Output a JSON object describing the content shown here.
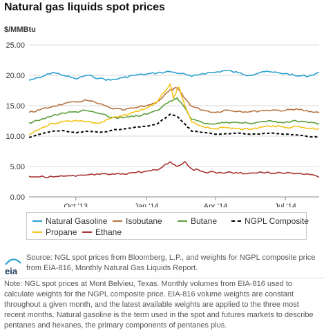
{
  "title": "Natural gas liquids spot prices",
  "unit_label": "$/MMBtu",
  "chart_data": {
    "type": "line",
    "title": "Natural gas liquids spot prices",
    "ylabel": "$/MMBtu",
    "xlabel": "",
    "ylim": [
      0,
      25
    ],
    "yticks": [
      "0.00",
      "5.00",
      "10.00",
      "15.00",
      "20.00",
      "25.00"
    ],
    "ytick_values": [
      0,
      5,
      10,
      15,
      20,
      25
    ],
    "xlim": [
      "2013-08-01",
      "2014-08-14"
    ],
    "xticks": [
      "Oct '13",
      "Jan '14",
      "Apr '14",
      "Jul '14"
    ],
    "xtick_dates": [
      "2013-10-01",
      "2014-01-01",
      "2014-04-01",
      "2014-07-01"
    ],
    "grid": "horizontal",
    "legend_position": "bottom",
    "series": [
      {
        "name": "Natural Gasoline",
        "color": "#2ba0d0",
        "dash": "solid",
        "x": [
          "2013-08-01",
          "2013-08-15",
          "2013-09-01",
          "2013-09-15",
          "2013-10-01",
          "2013-10-15",
          "2013-11-01",
          "2013-11-15",
          "2013-12-01",
          "2013-12-15",
          "2014-01-01",
          "2014-01-15",
          "2014-02-01",
          "2014-02-15",
          "2014-03-01",
          "2014-03-15",
          "2014-04-01",
          "2014-04-15",
          "2014-05-01",
          "2014-05-15",
          "2014-06-01",
          "2014-06-15",
          "2014-07-01",
          "2014-07-15",
          "2014-08-01",
          "2014-08-14"
        ],
        "values": [
          19.2,
          19.6,
          20.5,
          20.0,
          19.4,
          20.0,
          19.5,
          19.2,
          19.6,
          20.0,
          20.2,
          20.4,
          20.6,
          20.3,
          19.8,
          20.3,
          20.5,
          20.8,
          20.4,
          20.0,
          20.6,
          20.5,
          20.3,
          19.9,
          19.9,
          20.5
        ]
      },
      {
        "name": "Isobutane",
        "color": "#b8733f",
        "dash": "solid",
        "x": [
          "2013-08-01",
          "2013-08-15",
          "2013-09-01",
          "2013-09-15",
          "2013-10-01",
          "2013-10-15",
          "2013-11-01",
          "2013-11-15",
          "2013-12-01",
          "2013-12-15",
          "2014-01-01",
          "2014-01-15",
          "2014-02-01",
          "2014-02-10",
          "2014-02-20",
          "2014-03-01",
          "2014-03-15",
          "2014-04-01",
          "2014-04-15",
          "2014-05-01",
          "2014-05-15",
          "2014-06-01",
          "2014-06-15",
          "2014-07-01",
          "2014-07-15",
          "2014-08-01",
          "2014-08-14"
        ],
        "values": [
          13.9,
          14.3,
          14.9,
          15.3,
          15.6,
          15.9,
          15.3,
          14.6,
          14.3,
          14.6,
          15.0,
          15.6,
          17.6,
          17.9,
          16.2,
          14.9,
          14.3,
          13.9,
          14.3,
          14.1,
          14.0,
          14.2,
          14.3,
          14.2,
          14.5,
          14.0,
          13.8
        ]
      },
      {
        "name": "Butane",
        "color": "#5a9e3a",
        "dash": "solid",
        "x": [
          "2013-08-01",
          "2013-08-15",
          "2013-09-01",
          "2013-09-15",
          "2013-10-01",
          "2013-10-15",
          "2013-11-01",
          "2013-11-15",
          "2013-12-01",
          "2013-12-15",
          "2014-01-01",
          "2014-01-15",
          "2014-02-01",
          "2014-02-10",
          "2014-02-20",
          "2014-03-01",
          "2014-03-15",
          "2014-04-01",
          "2014-04-15",
          "2014-05-01",
          "2014-05-15",
          "2014-06-01",
          "2014-06-15",
          "2014-07-01",
          "2014-07-15",
          "2014-08-01",
          "2014-08-14"
        ],
        "values": [
          12.2,
          12.6,
          13.4,
          13.8,
          14.0,
          14.2,
          13.7,
          13.1,
          13.0,
          13.2,
          13.6,
          14.2,
          15.8,
          16.3,
          14.6,
          12.8,
          12.2,
          12.0,
          12.3,
          12.2,
          12.1,
          12.4,
          12.4,
          12.3,
          12.5,
          12.2,
          12.1
        ]
      },
      {
        "name": "NGPL Composite",
        "color": "#000000",
        "dash": "dashed",
        "x": [
          "2013-08-01",
          "2013-08-15",
          "2013-09-01",
          "2013-09-15",
          "2013-10-01",
          "2013-10-15",
          "2013-11-01",
          "2013-11-15",
          "2013-12-01",
          "2013-12-15",
          "2014-01-01",
          "2014-01-15",
          "2014-02-01",
          "2014-02-10",
          "2014-02-20",
          "2014-03-01",
          "2014-03-15",
          "2014-04-01",
          "2014-04-15",
          "2014-05-01",
          "2014-05-15",
          "2014-06-01",
          "2014-06-15",
          "2014-07-01",
          "2014-07-15",
          "2014-08-01",
          "2014-08-14"
        ],
        "values": [
          9.8,
          10.3,
          10.8,
          10.9,
          10.5,
          10.8,
          10.6,
          10.9,
          11.2,
          11.4,
          11.6,
          12.0,
          13.6,
          13.2,
          12.0,
          10.8,
          10.6,
          10.3,
          10.4,
          10.5,
          10.3,
          10.4,
          10.5,
          10.3,
          10.2,
          9.9,
          9.8
        ]
      },
      {
        "name": "Propane",
        "color": "#f5c31c",
        "dash": "solid",
        "x": [
          "2013-08-01",
          "2013-08-15",
          "2013-09-01",
          "2013-09-15",
          "2013-10-01",
          "2013-10-15",
          "2013-11-01",
          "2013-11-15",
          "2013-12-01",
          "2013-12-15",
          "2014-01-01",
          "2014-01-15",
          "2014-02-01",
          "2014-02-05",
          "2014-02-12",
          "2014-02-20",
          "2014-03-01",
          "2014-03-15",
          "2014-04-01",
          "2014-04-15",
          "2014-05-01",
          "2014-05-15",
          "2014-06-01",
          "2014-06-15",
          "2014-07-01",
          "2014-07-15",
          "2014-08-01",
          "2014-08-14"
        ],
        "values": [
          10.2,
          11.2,
          12.1,
          12.4,
          12.6,
          12.4,
          12.1,
          12.9,
          13.3,
          13.9,
          14.6,
          15.6,
          18.6,
          16.2,
          18.1,
          15.0,
          12.3,
          11.6,
          11.2,
          11.4,
          11.3,
          11.1,
          11.5,
          11.7,
          11.4,
          11.6,
          11.3,
          11.2
        ]
      },
      {
        "name": "Ethane",
        "color": "#a83232",
        "dash": "solid",
        "x": [
          "2013-08-01",
          "2013-08-15",
          "2013-09-01",
          "2013-09-15",
          "2013-10-01",
          "2013-10-15",
          "2013-11-01",
          "2013-11-15",
          "2013-12-01",
          "2013-12-15",
          "2014-01-01",
          "2014-01-15",
          "2014-02-01",
          "2014-02-10",
          "2014-02-20",
          "2014-03-01",
          "2014-03-15",
          "2014-04-01",
          "2014-04-15",
          "2014-05-01",
          "2014-05-15",
          "2014-06-01",
          "2014-06-15",
          "2014-07-01",
          "2014-07-15",
          "2014-08-01",
          "2014-08-14"
        ],
        "values": [
          3.4,
          3.3,
          3.3,
          3.4,
          3.4,
          3.6,
          3.7,
          3.7,
          3.8,
          4.0,
          4.2,
          4.4,
          5.8,
          5.0,
          5.8,
          4.6,
          4.2,
          4.0,
          4.0,
          3.9,
          3.9,
          4.0,
          3.9,
          3.9,
          3.9,
          3.7,
          3.2
        ]
      }
    ]
  },
  "legend": {
    "items": [
      {
        "label": "Natural Gasoline",
        "color": "#2ba0d0",
        "dash": "solid"
      },
      {
        "label": "Isobutane",
        "color": "#b8733f",
        "dash": "solid"
      },
      {
        "label": "Butane",
        "color": "#5a9e3a",
        "dash": "solid"
      },
      {
        "label": "NGPL Composite",
        "color": "#000000",
        "dash": "dashed"
      },
      {
        "label": "Propane",
        "color": "#f5c31c",
        "dash": "solid"
      },
      {
        "label": "Ethane",
        "color": "#a83232",
        "dash": "solid"
      }
    ]
  },
  "source": {
    "logo_text": "eia",
    "text": "Source: NGL spot prices from Bloomberg, L.P., and weights for NGPL composite price from EIA-816, Monthly Natural Gas Liquids Report."
  },
  "note": "Note: NGL spot prices at Mont Belvieu, Texas. Monthly volumes from EIA-816 used to calculate weights for the NGPL composite price. EIA-816 volume weights are constant throughout a given month, and the latest available weights are applied to the three most recent months. Natural gasoline is the term used in the spot and futures markets to describe pentanes and hexanes, the primary components of pentanes plus."
}
